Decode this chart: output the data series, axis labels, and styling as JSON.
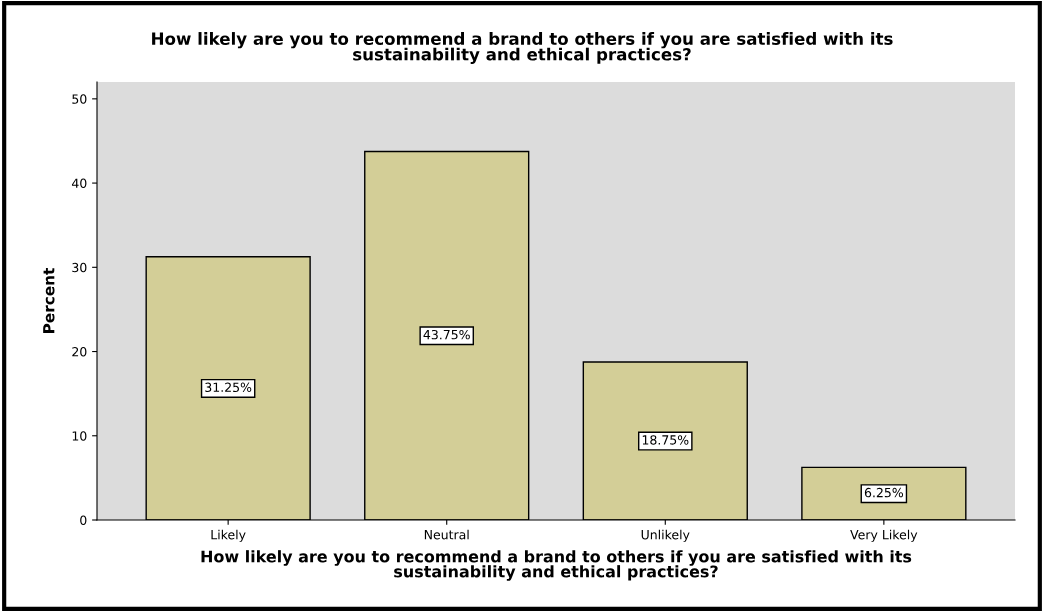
{
  "chart_data": {
    "type": "bar",
    "title": "How likely are you to recommend a brand to others if you are satisfied with its\nsustainability and ethical practices?",
    "xlabel": "How likely are you to recommend a brand to others if you are satisfied with its\nsustainability and ethical practices?",
    "ylabel": "Percent",
    "categories": [
      "Likely",
      "Neutral",
      "Unlikely",
      "Very Likely"
    ],
    "values": [
      31.25,
      43.75,
      18.75,
      6.25
    ],
    "value_labels": [
      "31.25%",
      "43.75%",
      "18.75%",
      "6.25%"
    ],
    "color": "#d3ce97",
    "ylim": [
      0,
      52
    ],
    "yticks": [
      0,
      10,
      20,
      30,
      40,
      50
    ],
    "grid": false
  }
}
